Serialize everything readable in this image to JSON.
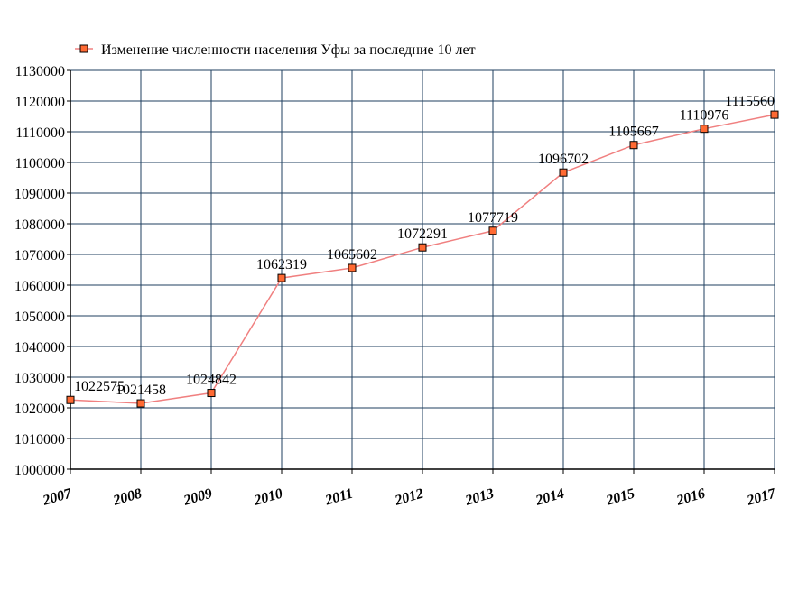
{
  "chart_data": {
    "type": "line",
    "title": "",
    "xlabel": "",
    "ylabel": "",
    "categories": [
      "2007",
      "2008",
      "2009",
      "2010",
      "2011",
      "2012",
      "2013",
      "2014",
      "2015",
      "2016",
      "2017"
    ],
    "series": [
      {
        "name": "Изменение численности населения Уфы за последние 10 лет",
        "values": [
          1022575,
          1021458,
          1024842,
          1062319,
          1065602,
          1072291,
          1077719,
          1096702,
          1105667,
          1110976,
          1115560
        ],
        "labels": [
          "1022575",
          "1021458",
          "1024842",
          "1062319",
          "1065602",
          "1072291",
          "1077719",
          "1096702",
          "1105667",
          "1110976",
          "1115560"
        ]
      }
    ],
    "ylim": [
      1000000,
      1130000
    ],
    "yticks": [
      "1000000",
      "1010000",
      "1020000",
      "1030000",
      "1040000",
      "1050000",
      "1060000",
      "1070000",
      "1080000",
      "1090000",
      "1100000",
      "1110000",
      "1120000",
      "1130000"
    ],
    "grid": true,
    "legend_position": "top",
    "colors": {
      "line": "#f08080",
      "marker_fill": "#ff6a33",
      "marker_stroke": "#000000",
      "grid": "#1f3f5f",
      "axis": "#000000"
    }
  }
}
